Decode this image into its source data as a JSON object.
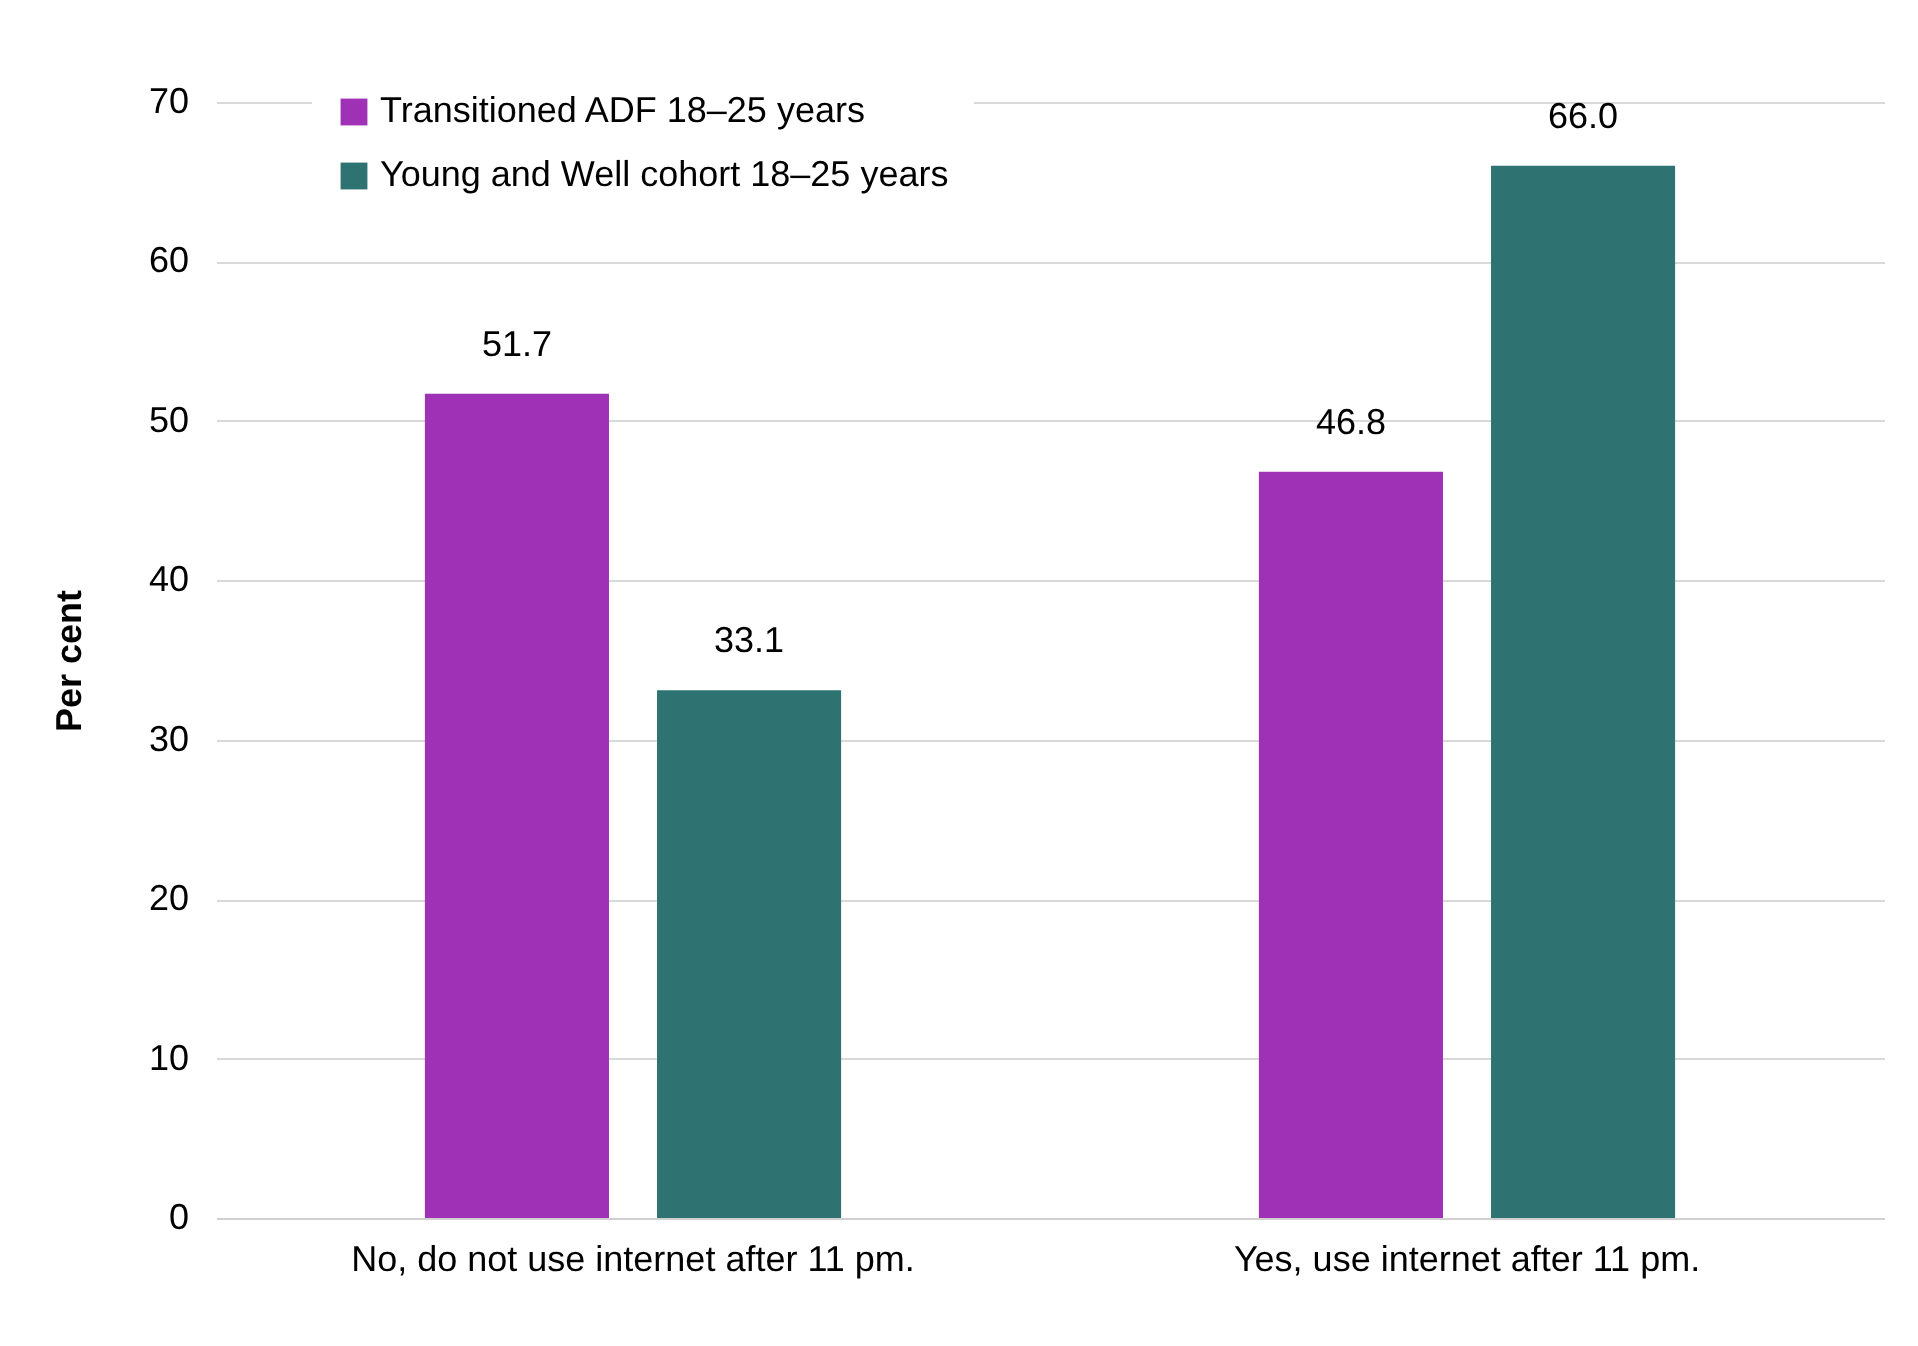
{
  "chart_data": {
    "type": "bar",
    "ylabel": "Per cent",
    "categories": [
      "No, do not use internet after 11 pm.",
      "Yes, use internet after 11 pm."
    ],
    "series": [
      {
        "name": "Transitioned ADF 18–25 years",
        "color": "#9e31b5",
        "values": [
          51.7,
          46.8
        ],
        "value_labels": [
          "51.7",
          "46.8"
        ]
      },
      {
        "name": "Young and Well cohort 18–25 years",
        "color": "#2e7371",
        "values": [
          33.1,
          66.0
        ],
        "value_labels": [
          "33.1",
          "66.0"
        ]
      }
    ],
    "ylim": [
      0,
      70
    ],
    "yticks": [
      0,
      10,
      20,
      30,
      40,
      50,
      60,
      70
    ],
    "grid": "y",
    "legend": "top left"
  }
}
